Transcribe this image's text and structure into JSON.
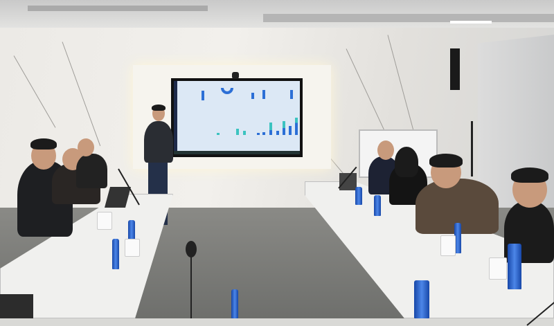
{
  "colors": {
    "wall": "#eceae6",
    "screen_bg": "#dce8f5",
    "bar_blue": "#2c6fd6",
    "bar_teal": "#3cc3c0",
    "bottle_blue": "#1f5bc8",
    "floor": "#7c7d7a",
    "table": "#f0f0ee"
  }
}
